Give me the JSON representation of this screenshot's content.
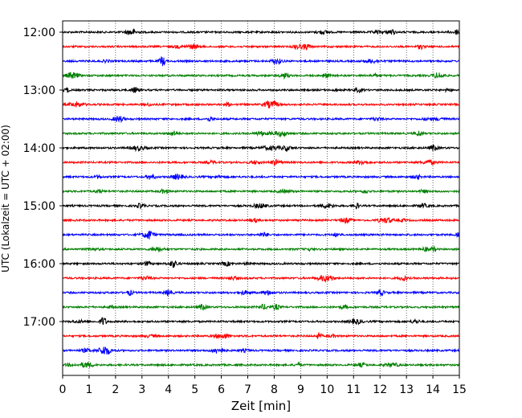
{
  "chart_data": {
    "type": "line",
    "title": "",
    "xlabel": "Zeit  [min]",
    "ylabel": "UTC (Lokalzeit = UTC + 02:00)",
    "xlim": [
      0,
      15
    ],
    "x_ticks": [
      "0",
      "1",
      "2",
      "3",
      "4",
      "5",
      "6",
      "7",
      "8",
      "9",
      "10",
      "11",
      "12",
      "13",
      "14",
      "15"
    ],
    "y_ticks": [
      "12:00",
      "13:00",
      "14:00",
      "15:00",
      "16:00",
      "17:00"
    ],
    "grid": "vertical-dotted",
    "trace_minutes": 15,
    "trace_count": 24,
    "trace_colors": [
      "#000000",
      "#ff0000",
      "#0000ff",
      "#008000"
    ],
    "start_time": "12:00"
  }
}
